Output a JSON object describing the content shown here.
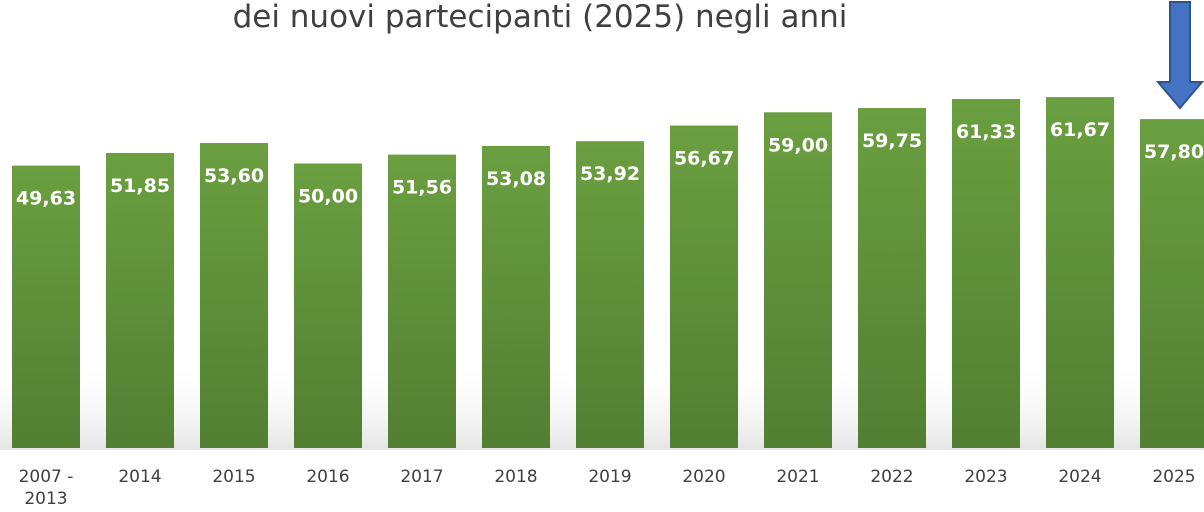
{
  "chart_data": {
    "type": "bar",
    "title": "dei nuovi partecipanti (2025) negli anni",
    "categories": [
      "2007 - 2013",
      "2014",
      "2015",
      "2016",
      "2017",
      "2018",
      "2019",
      "2020",
      "2021",
      "2022",
      "2023",
      "2024",
      "2025"
    ],
    "values": [
      49.63,
      51.85,
      53.6,
      50.0,
      51.56,
      53.08,
      53.92,
      56.67,
      59.0,
      59.75,
      61.33,
      61.67,
      57.8
    ],
    "value_labels": [
      "49,63",
      "51,85",
      "53,60",
      "50,00",
      "51,56",
      "53,08",
      "53,92",
      "56,67",
      "59,00",
      "59,75",
      "61,33",
      "61,67",
      "57,80"
    ],
    "color": "#5f923a"
  }
}
